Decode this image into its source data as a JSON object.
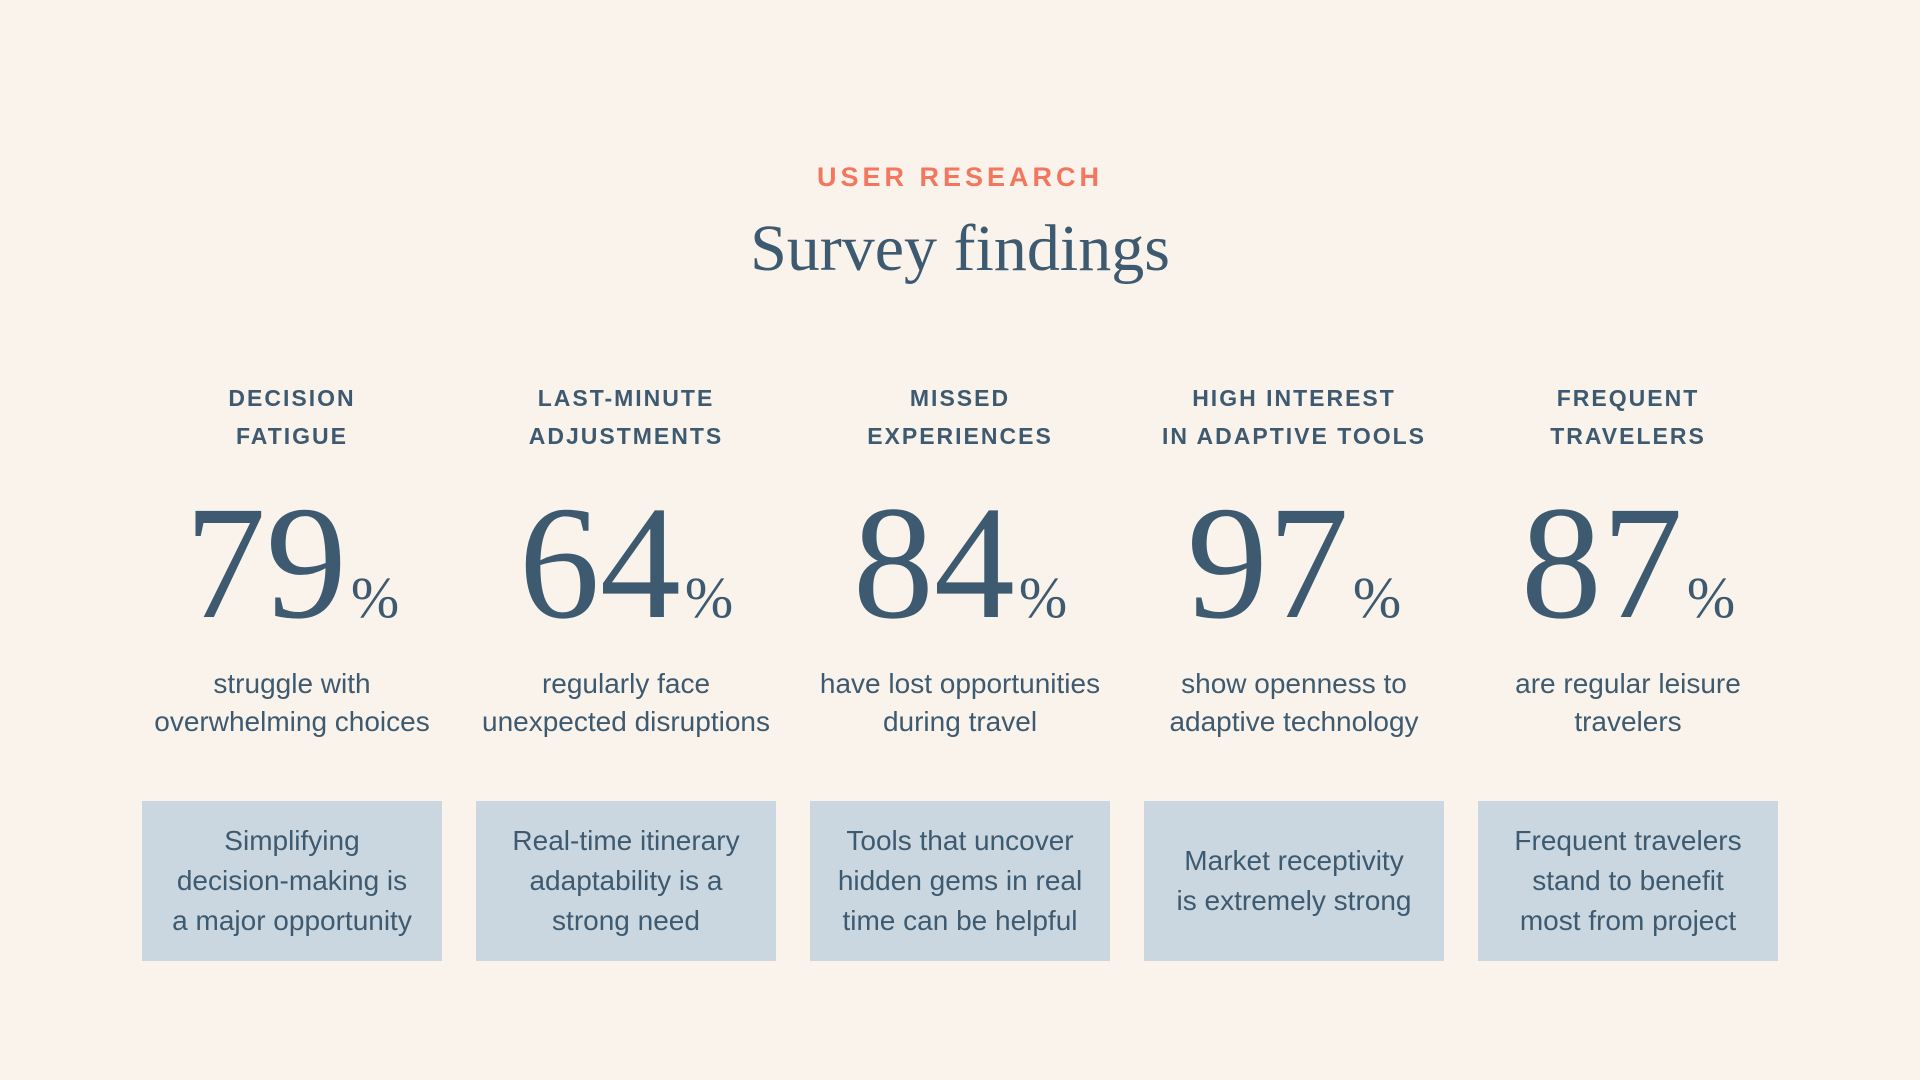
{
  "colors": {
    "background": "#FAF3EB",
    "accent_coral": "#F3765F",
    "text_dark_slate": "#3D5A70",
    "callout_box": "#CBD7E0"
  },
  "header": {
    "eyebrow": "USER RESEARCH",
    "title": "Survey findings"
  },
  "columns": [
    {
      "label": "DECISION\nFATIGUE",
      "value": "79",
      "percent_sign": "%",
      "description": "struggle with\noverwhelming choices",
      "callout": "Simplifying\ndecision-making is\na major opportunity"
    },
    {
      "label": "LAST-MINUTE\nADJUSTMENTS",
      "value": "64",
      "percent_sign": "%",
      "description": "regularly face\nunexpected disruptions",
      "callout": "Real-time itinerary\nadaptability is a\nstrong need"
    },
    {
      "label": "MISSED\nEXPERIENCES",
      "value": "84",
      "percent_sign": "%",
      "description": "have lost opportunities\nduring travel",
      "callout": "Tools that uncover\nhidden gems in real\ntime can be helpful"
    },
    {
      "label": "HIGH INTEREST\nIN ADAPTIVE TOOLS",
      "value": "97",
      "percent_sign": "%",
      "description": "show openness to\nadaptive technology",
      "callout": "Market receptivity\nis extremely strong"
    },
    {
      "label": "FREQUENT\nTRAVELERS",
      "value": "87",
      "percent_sign": "%",
      "description": "are regular leisure\ntravelers",
      "callout": "Frequent travelers\nstand to benefit\nmost from project"
    }
  ]
}
